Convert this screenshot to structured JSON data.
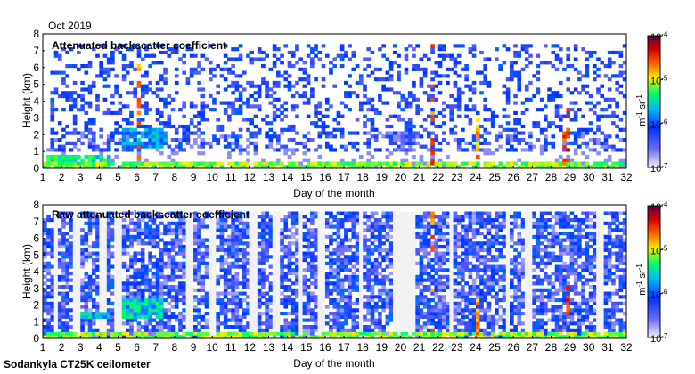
{
  "figure": {
    "date_label": "Oct 2019",
    "footer": "Sodankyla CT25K ceilometer"
  },
  "chart_data": [
    {
      "type": "heatmap",
      "title": "Attenuated backscatter coefficient",
      "xlabel": "Day of the month",
      "ylabel": "Height (km)",
      "xlim": [
        1,
        32
      ],
      "ylim": [
        0,
        8
      ],
      "xticks": [
        1,
        2,
        3,
        4,
        5,
        6,
        7,
        8,
        9,
        10,
        11,
        12,
        13,
        14,
        15,
        16,
        17,
        18,
        19,
        20,
        21,
        22,
        23,
        24,
        25,
        26,
        27,
        28,
        29,
        30,
        31,
        32
      ],
      "yticks": [
        0,
        1,
        2,
        3,
        4,
        5,
        6,
        7,
        8
      ],
      "colorbar": {
        "scale": "log",
        "range": [
          1e-07,
          0.0001
        ],
        "tick_labels": [
          {
            "value": -7,
            "base": "10",
            "exp": "-7"
          },
          {
            "value": -6,
            "base": "10",
            "exp": "-6"
          },
          {
            "value": -5,
            "base": "10",
            "exp": "-5"
          },
          {
            "value": -4,
            "base": "10",
            "exp": "-4"
          }
        ],
        "unit": {
          "m": "m",
          "m_exp": "-1",
          "sr": "sr",
          "sr_exp": "-1"
        }
      },
      "cloud_layers": [
        {
          "day_start": 1,
          "day_end": 32,
          "base_km": 0,
          "top_km": 0.45,
          "log_value": -5.3
        },
        {
          "day_start": 1.2,
          "day_end": 4.6,
          "base_km": 0.3,
          "top_km": 0.8,
          "log_value": -5.6
        },
        {
          "day_start": 5.2,
          "day_end": 7.5,
          "base_km": 1.2,
          "top_km": 2.5,
          "log_value": -5.9
        },
        {
          "day_start": 1.5,
          "day_end": 32,
          "base_km": 1.0,
          "top_km": 7.4,
          "log_value": -6.3
        },
        {
          "day_start": 19.3,
          "day_end": 21.0,
          "base_km": 1.5,
          "top_km": 2.1,
          "log_value": -6.5
        },
        {
          "day_start": 6.0,
          "day_end": 6.2,
          "base_km": 0.5,
          "top_km": 6.2,
          "log_value": -4.8
        },
        {
          "day_start": 21.6,
          "day_end": 21.9,
          "base_km": 0.3,
          "top_km": 7.5,
          "log_value": -4.7
        },
        {
          "day_start": 24.0,
          "day_end": 24.3,
          "base_km": 0.2,
          "top_km": 3.0,
          "log_value": -4.9
        },
        {
          "day_start": 28.7,
          "day_end": 29.0,
          "base_km": 0.3,
          "top_km": 3.6,
          "log_value": -4.6
        }
      ]
    },
    {
      "type": "heatmap",
      "title": "Raw attenuated backscatter coefficient",
      "xlabel": "Day of the month",
      "ylabel": "Height (km)",
      "xlim": [
        1,
        32
      ],
      "ylim": [
        0,
        8
      ],
      "xticks": [
        1,
        2,
        3,
        4,
        5,
        6,
        7,
        8,
        9,
        10,
        11,
        12,
        13,
        14,
        15,
        16,
        17,
        18,
        19,
        20,
        21,
        22,
        23,
        24,
        25,
        26,
        27,
        28,
        29,
        30,
        31,
        32
      ],
      "yticks": [
        0,
        1,
        2,
        3,
        4,
        5,
        6,
        7,
        8
      ],
      "colorbar": {
        "scale": "log",
        "range": [
          1e-07,
          0.0001
        ],
        "tick_labels": [
          {
            "value": -7,
            "base": "10",
            "exp": "-7"
          },
          {
            "value": -6,
            "base": "10",
            "exp": "-6"
          },
          {
            "value": -5,
            "base": "10",
            "exp": "-5"
          },
          {
            "value": -4,
            "base": "10",
            "exp": "-4"
          }
        ],
        "unit": {
          "m": "m",
          "m_exp": "-1",
          "sr": "sr",
          "sr_exp": "-1"
        }
      },
      "noise_top_km": 7.5,
      "cloud_layers": [
        {
          "day_start": 1,
          "day_end": 32,
          "base_km": 0,
          "top_km": 0.45,
          "log_value": -5.3
        },
        {
          "day_start": 3.0,
          "day_end": 4.6,
          "base_km": 1.3,
          "top_km": 1.7,
          "log_value": -5.8
        },
        {
          "day_start": 5.3,
          "day_end": 7.4,
          "base_km": 1.2,
          "top_km": 2.5,
          "log_value": -5.7
        },
        {
          "day_start": 21.6,
          "day_end": 21.9,
          "base_km": 0.3,
          "top_km": 7.5,
          "log_value": -4.8
        },
        {
          "day_start": 24.0,
          "day_end": 24.3,
          "base_km": 0.2,
          "top_km": 2.5,
          "log_value": -4.9
        },
        {
          "day_start": 28.8,
          "day_end": 29.0,
          "base_km": 1.5,
          "top_km": 3.6,
          "log_value": -4.6
        }
      ]
    }
  ]
}
